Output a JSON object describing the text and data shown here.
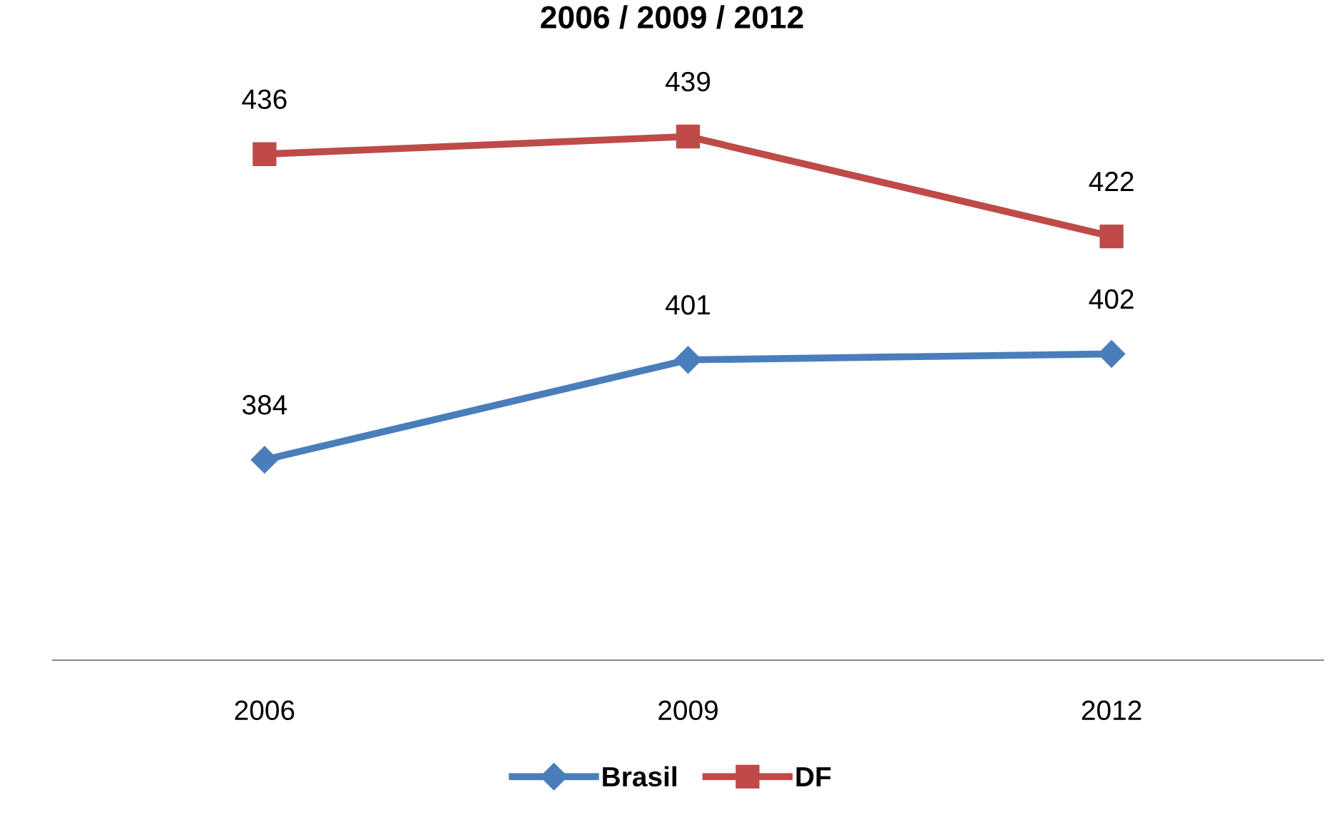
{
  "chart_data": {
    "type": "line",
    "title": "2006 / 2009 / 2012",
    "categories": [
      "2006",
      "2009",
      "2012"
    ],
    "series": [
      {
        "name": "Brasil",
        "color": "#4a7ebb",
        "values": [
          384,
          401,
          402
        ],
        "marker": "diamond"
      },
      {
        "name": "DF",
        "color": "#be4b48",
        "values": [
          436,
          439,
          422
        ],
        "marker": "square"
      }
    ],
    "tick_labels": "x",
    "data_labels": true,
    "legend": "bottom",
    "grid": false
  }
}
